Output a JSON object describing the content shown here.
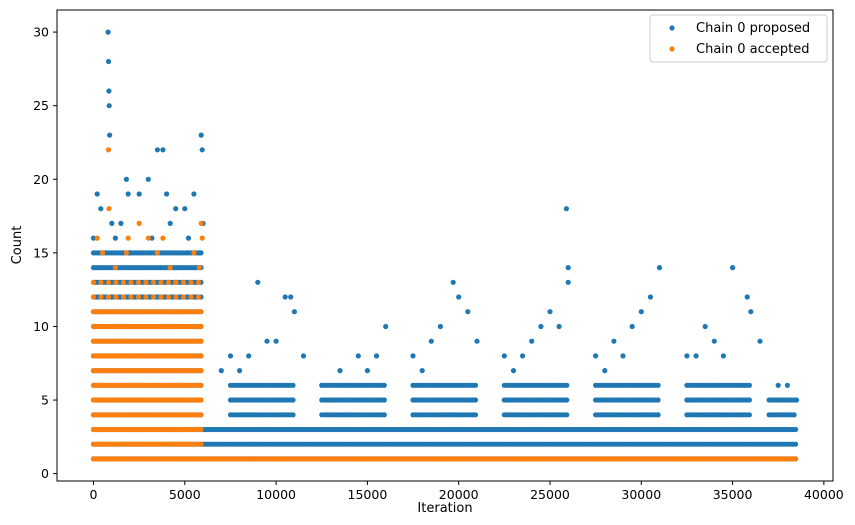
{
  "chart_data": {
    "type": "scatter",
    "xlabel": "Iteration",
    "ylabel": "Count",
    "xlim": [
      -2000,
      40500
    ],
    "ylim": [
      -0.5,
      31.5
    ],
    "xticks": [
      0,
      5000,
      10000,
      15000,
      20000,
      25000,
      30000,
      35000,
      40000
    ],
    "yticks": [
      0,
      5,
      10,
      15,
      20,
      25,
      30
    ],
    "grid": false,
    "legend_position": "top-right",
    "series": [
      {
        "name": "Chain 0 proposed",
        "color": "#1f77b4",
        "marker": "circle",
        "x": [
          800,
          820,
          840,
          860,
          880,
          3500,
          3800,
          5900,
          5950,
          25900,
          26000,
          9000,
          10800,
          11000,
          16000,
          19700,
          20000,
          20500,
          26000,
          30500,
          31000,
          35000,
          35800,
          36000,
          1800,
          1900,
          2500,
          3000,
          4000,
          4500,
          5000,
          5500,
          6000,
          0,
          200,
          400,
          1000,
          1200,
          1500,
          2000,
          3200,
          4200,
          5200,
          5800,
          7000,
          7500,
          8000,
          8500,
          9500,
          10000,
          10500,
          11500,
          12500,
          13000,
          13500,
          14000,
          14500,
          15000,
          15500,
          17500,
          18000,
          18500,
          19000,
          21000,
          22500,
          23000,
          23500,
          24000,
          24500,
          25000,
          25500,
          27500,
          28000,
          28500,
          29000,
          29500,
          30000,
          32500,
          33000,
          33500,
          34000,
          34500,
          36500,
          37500,
          38000,
          38500
        ],
        "y": [
          30,
          28,
          26,
          25,
          23,
          22,
          22,
          23,
          22,
          18,
          14,
          13,
          12,
          11,
          10,
          13,
          12,
          11,
          13,
          12,
          14,
          14,
          12,
          11,
          20,
          19,
          19,
          20,
          19,
          18,
          18,
          19,
          17,
          16,
          19,
          18,
          17,
          16,
          17,
          15,
          16,
          17,
          16,
          15,
          7,
          8,
          7,
          8,
          9,
          9,
          12,
          8,
          6,
          5,
          7,
          6,
          8,
          7,
          8,
          8,
          7,
          9,
          10,
          9,
          8,
          7,
          8,
          9,
          10,
          11,
          10,
          8,
          7,
          9,
          8,
          10,
          11,
          8,
          8,
          10,
          9,
          8,
          9,
          6,
          6,
          5
        ],
        "bands": [
          {
            "x_range": [
              0,
              6000
            ],
            "y_values": [
              1,
              2,
              3,
              4,
              5,
              6,
              7,
              8,
              9,
              10,
              11,
              12,
              13,
              14,
              15
            ]
          },
          {
            "x_range": [
              6000,
              38500
            ],
            "y_values": [
              1,
              2,
              3
            ]
          },
          {
            "x_range": [
              7500,
              11000
            ],
            "y_values": [
              4,
              5,
              6
            ]
          },
          {
            "x_range": [
              12500,
              16000
            ],
            "y_values": [
              4,
              5,
              6
            ]
          },
          {
            "x_range": [
              17500,
              21000
            ],
            "y_values": [
              4,
              5,
              6
            ]
          },
          {
            "x_range": [
              22500,
              26000
            ],
            "y_values": [
              4,
              5,
              6
            ]
          },
          {
            "x_range": [
              27500,
              31000
            ],
            "y_values": [
              4,
              5,
              6
            ]
          },
          {
            "x_range": [
              32500,
              36000
            ],
            "y_values": [
              4,
              5,
              6
            ]
          },
          {
            "x_range": [
              37000,
              38500
            ],
            "y_values": [
              4,
              5
            ]
          }
        ]
      },
      {
        "name": "Chain 0 accepted",
        "color": "#ff7f0e",
        "marker": "circle",
        "x": [
          820,
          850,
          1800,
          1900,
          2500,
          3000,
          3500,
          3800,
          4200,
          5900,
          5950,
          200,
          500,
          1200,
          4500,
          5500,
          5800
        ],
        "y": [
          22,
          18,
          15,
          16,
          17,
          16,
          15,
          16,
          14,
          17,
          16,
          16,
          15,
          14,
          13,
          15,
          14
        ],
        "bands": [
          {
            "x_range": [
              0,
              6000
            ],
            "y_values": [
              1,
              2,
              3,
              4,
              5,
              6,
              7,
              8,
              9,
              10,
              11
            ]
          },
          {
            "x_range": [
              0,
              6000
            ],
            "y_values": [
              12,
              13
            ],
            "sparse": true
          },
          {
            "x_range": [
              6000,
              38500
            ],
            "y_values": [
              1
            ]
          }
        ]
      }
    ]
  }
}
